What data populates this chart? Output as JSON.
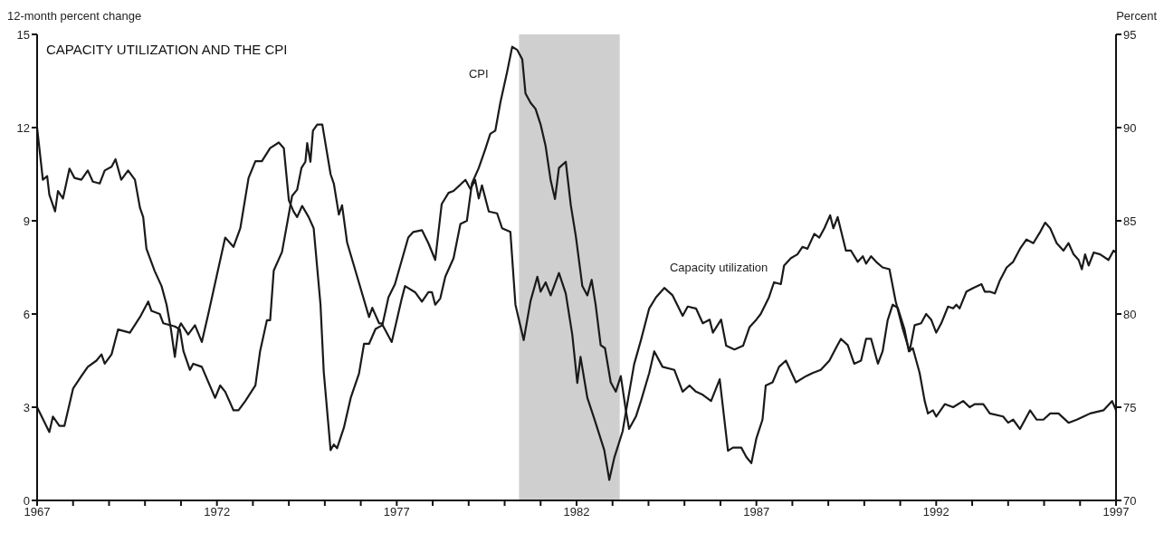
{
  "chart_data": {
    "type": "line",
    "title": "CAPACITY UTILIZATION AND THE CPI",
    "ylabel": "12-month percent change",
    "y2label": "Percent",
    "xlim": [
      1967,
      1997
    ],
    "xticks": [
      1967,
      {
        "value": 1968,
        "label": null
      },
      {
        "value": 1969,
        "label": null
      },
      {
        "value": 1970,
        "label": null
      },
      {
        "value": 1971,
        "label": null
      },
      1972,
      {
        "value": 1973,
        "label": null
      },
      {
        "value": 1974,
        "label": null
      },
      {
        "value": 1975,
        "label": null
      },
      {
        "value": 1976,
        "label": null
      },
      1977,
      {
        "value": 1978,
        "label": null
      },
      {
        "value": 1979,
        "label": null
      },
      {
        "value": 1980,
        "label": null
      },
      {
        "value": 1981,
        "label": null
      },
      1982,
      {
        "value": 1983,
        "label": null
      },
      {
        "value": 1984,
        "label": null
      },
      {
        "value": 1985,
        "label": null
      },
      {
        "value": 1986,
        "label": null
      },
      1987,
      {
        "value": 1988,
        "label": null
      },
      {
        "value": 1989,
        "label": null
      },
      {
        "value": 1990,
        "label": null
      },
      {
        "value": 1991,
        "label": null
      },
      1992,
      {
        "value": 1993,
        "label": null
      },
      {
        "value": 1994,
        "label": null
      },
      {
        "value": 1995,
        "label": null
      },
      {
        "value": 1996,
        "label": null
      },
      1997
    ],
    "ylim": [
      0,
      15
    ],
    "yticks": [
      0,
      3,
      6,
      9,
      12,
      15
    ],
    "y2lim": [
      70,
      95
    ],
    "y2ticks": [
      70,
      75,
      80,
      85,
      90,
      95
    ],
    "bands": [
      {
        "axis": "x",
        "from": 1980.4,
        "to": 1983.2,
        "color": "#cfcfcf"
      }
    ],
    "series": [
      {
        "name": "CPI",
        "color": "#1a1a1a",
        "x": [
          1967.0,
          1967.34,
          1967.44,
          1967.62,
          1967.76,
          1968.0,
          1968.23,
          1968.41,
          1968.65,
          1968.79,
          1968.88,
          1969.07,
          1969.25,
          1969.58,
          1969.86,
          1970.09,
          1970.18,
          1970.41,
          1970.51,
          1970.83,
          1970.97,
          1971.07,
          1971.25,
          1971.34,
          1971.58,
          1971.95,
          1972.09,
          1972.23,
          1972.46,
          1972.6,
          1972.79,
          1973.07,
          1973.2,
          1973.39,
          1973.48,
          1973.58,
          1973.81,
          1973.95,
          1974.09,
          1974.23,
          1974.35,
          1974.46,
          1974.51,
          1974.6,
          1974.67,
          1974.79,
          1974.93,
          1975.16,
          1975.25,
          1975.39,
          1975.48,
          1975.62,
          1975.9,
          1976.23,
          1976.32,
          1976.51,
          1976.58,
          1976.86,
          1977.14,
          1977.23,
          1977.51,
          1977.7,
          1977.88,
          1977.98,
          1978.07,
          1978.21,
          1978.35,
          1978.58,
          1978.77,
          1978.95,
          1979.09,
          1979.28,
          1979.46,
          1979.6,
          1979.74,
          1979.88,
          1980.07,
          1980.21,
          1980.35,
          1980.49,
          1980.58,
          1980.72,
          1980.86,
          1981.0,
          1981.14,
          1981.28,
          1981.4,
          1981.51,
          1981.7,
          1981.84,
          1981.98,
          1982.16,
          1982.3,
          1982.42,
          1982.53,
          1982.67,
          1982.79,
          1982.95,
          1983.09,
          1983.23,
          1983.37,
          1983.46,
          1983.65,
          1983.79,
          1984.02,
          1984.16,
          1984.39,
          1984.72,
          1984.95,
          1985.14,
          1985.32,
          1985.51,
          1985.74,
          1985.98,
          1986.21,
          1986.35,
          1986.58,
          1986.72,
          1986.86,
          1987.0,
          1987.17,
          1987.26,
          1987.45,
          1987.63,
          1987.82,
          1988.1,
          1988.38,
          1988.56,
          1988.79,
          1989.03,
          1989.21,
          1989.35,
          1989.54,
          1989.72,
          1989.91,
          1990.05,
          1990.19,
          1990.38,
          1990.51,
          1990.65,
          1990.79,
          1990.93,
          1991.12,
          1991.24,
          1991.35,
          1991.54,
          1991.68,
          1991.77,
          1991.91,
          1992.0,
          1992.24,
          1992.47,
          1992.75,
          1992.93,
          1993.07,
          1993.31,
          1993.49,
          1993.86,
          1994.0,
          1994.14,
          1994.33,
          1994.61,
          1994.79,
          1994.98,
          1995.17,
          1995.4,
          1995.68,
          1995.91,
          1996.1,
          1996.28,
          1996.65,
          1996.89,
          1997.0
        ],
        "values": [
          3.0,
          2.2,
          2.7,
          2.4,
          2.4,
          3.6,
          4.0,
          4.3,
          4.5,
          4.7,
          4.4,
          4.7,
          5.5,
          5.4,
          5.9,
          6.4,
          6.1,
          6.0,
          5.7,
          5.6,
          5.5,
          4.8,
          4.2,
          4.4,
          4.3,
          3.3,
          3.7,
          3.5,
          2.9,
          2.9,
          3.2,
          3.7,
          4.8,
          5.8,
          5.8,
          7.4,
          8.0,
          8.9,
          9.8,
          10.0,
          10.7,
          10.9,
          11.5,
          10.9,
          11.9,
          12.1,
          12.1,
          10.5,
          10.2,
          9.2,
          9.5,
          8.3,
          7.2,
          5.9,
          6.2,
          5.7,
          5.7,
          5.1,
          6.5,
          6.9,
          6.7,
          6.4,
          6.7,
          6.7,
          6.3,
          6.5,
          7.2,
          7.8,
          8.9,
          9.0,
          10.2,
          10.7,
          11.3,
          11.8,
          11.9,
          12.8,
          13.8,
          14.6,
          14.5,
          14.2,
          13.1,
          12.8,
          12.6,
          12.1,
          11.4,
          10.3,
          9.7,
          10.7,
          10.9,
          9.5,
          8.5,
          6.9,
          6.6,
          7.1,
          6.3,
          5.0,
          4.9,
          3.8,
          3.5,
          4.0,
          2.9,
          2.3,
          2.7,
          3.2,
          4.1,
          4.8,
          4.3,
          4.2,
          3.5,
          3.7,
          3.5,
          3.4,
          3.2,
          3.9,
          1.6,
          1.7,
          1.7,
          1.4,
          1.2,
          2.0,
          2.6,
          3.7,
          3.8,
          4.3,
          4.5,
          3.8,
          4.0,
          4.1,
          4.2,
          4.5,
          4.9,
          5.2,
          5.0,
          4.4,
          4.5,
          5.2,
          5.2,
          4.4,
          4.8,
          5.8,
          6.3,
          6.2,
          5.5,
          4.8,
          4.9,
          4.1,
          3.2,
          2.8,
          2.9,
          2.7,
          3.1,
          3.0,
          3.2,
          3.0,
          3.1,
          3.1,
          2.8,
          2.7,
          2.5,
          2.6,
          2.3,
          2.9,
          2.6,
          2.6,
          2.8,
          2.8,
          2.5,
          2.6,
          2.7,
          2.8,
          2.9,
          3.2,
          2.9
        ]
      },
      {
        "name": "Capacity utilization",
        "color": "#1a1a1a",
        "axis": "y2",
        "x": [
          1967.0,
          1967.16,
          1967.28,
          1967.34,
          1967.5,
          1967.58,
          1967.72,
          1967.9,
          1968.04,
          1968.23,
          1968.41,
          1968.55,
          1968.74,
          1968.88,
          1969.07,
          1969.18,
          1969.34,
          1969.53,
          1969.72,
          1969.86,
          1969.95,
          1970.04,
          1970.27,
          1970.46,
          1970.6,
          1970.72,
          1970.83,
          1970.93,
          1971.0,
          1971.2,
          1971.39,
          1971.58,
          1971.76,
          1972.0,
          1972.23,
          1972.46,
          1972.65,
          1972.88,
          1973.07,
          1973.25,
          1973.48,
          1973.72,
          1973.86,
          1974.0,
          1974.13,
          1974.23,
          1974.37,
          1974.55,
          1974.69,
          1974.88,
          1974.97,
          1975.16,
          1975.25,
          1975.34,
          1975.53,
          1975.72,
          1975.95,
          1976.09,
          1976.23,
          1976.41,
          1976.6,
          1976.77,
          1976.95,
          1977.32,
          1977.46,
          1977.7,
          1977.88,
          1978.07,
          1978.25,
          1978.44,
          1978.58,
          1978.91,
          1979.05,
          1979.18,
          1979.28,
          1979.37,
          1979.56,
          1979.79,
          1979.93,
          1980.16,
          1980.3,
          1980.53,
          1980.72,
          1980.91,
          1981.0,
          1981.14,
          1981.28,
          1981.51,
          1981.7,
          1981.88,
          1982.02,
          1982.11,
          1982.3,
          1982.49,
          1982.77,
          1982.91,
          1983.05,
          1983.28,
          1983.42,
          1983.6,
          1983.79,
          1984.02,
          1984.21,
          1984.44,
          1984.67,
          1984.95,
          1985.09,
          1985.32,
          1985.51,
          1985.7,
          1985.79,
          1986.02,
          1986.16,
          1986.39,
          1986.63,
          1986.81,
          1987.0,
          1987.12,
          1987.35,
          1987.49,
          1987.68,
          1987.77,
          1987.96,
          1988.14,
          1988.28,
          1988.42,
          1988.61,
          1988.75,
          1988.89,
          1989.05,
          1989.14,
          1989.26,
          1989.49,
          1989.63,
          1989.82,
          1989.96,
          1990.05,
          1990.19,
          1990.33,
          1990.51,
          1990.7,
          1990.87,
          1991.07,
          1991.26,
          1991.4,
          1991.58,
          1991.72,
          1991.86,
          1992.0,
          1992.14,
          1992.33,
          1992.47,
          1992.56,
          1992.65,
          1992.84,
          1993.03,
          1993.26,
          1993.35,
          1993.49,
          1993.63,
          1993.77,
          1993.96,
          1994.14,
          1994.33,
          1994.51,
          1994.7,
          1994.89,
          1995.03,
          1995.17,
          1995.35,
          1995.54,
          1995.68,
          1995.82,
          1995.96,
          1996.05,
          1996.14,
          1996.24,
          1996.38,
          1996.56,
          1996.79,
          1996.93,
          1997.0
        ],
        "values": [
          90.0,
          87.2,
          87.4,
          86.4,
          85.5,
          86.6,
          86.2,
          87.8,
          87.3,
          87.2,
          87.7,
          87.1,
          87.0,
          87.7,
          87.9,
          88.3,
          87.2,
          87.7,
          87.2,
          85.7,
          85.2,
          83.5,
          82.3,
          81.5,
          80.5,
          79.2,
          77.7,
          79.2,
          79.5,
          78.9,
          79.4,
          78.5,
          80.0,
          82.1,
          84.1,
          83.6,
          84.6,
          87.3,
          88.2,
          88.2,
          88.9,
          89.2,
          88.9,
          86.1,
          85.5,
          85.2,
          85.8,
          85.2,
          84.6,
          80.5,
          76.9,
          72.7,
          73.0,
          72.8,
          73.9,
          75.5,
          76.8,
          78.4,
          78.4,
          79.2,
          79.4,
          80.9,
          81.6,
          84.1,
          84.4,
          84.5,
          83.8,
          82.9,
          85.9,
          86.5,
          86.6,
          87.2,
          86.7,
          87.2,
          86.2,
          86.9,
          85.5,
          85.4,
          84.6,
          84.4,
          80.5,
          78.6,
          80.7,
          82.0,
          81.2,
          81.7,
          81.0,
          82.2,
          81.1,
          78.9,
          76.3,
          77.7,
          75.5,
          74.4,
          72.7,
          71.1,
          72.3,
          73.7,
          75.3,
          77.3,
          78.6,
          80.3,
          80.9,
          81.4,
          81.0,
          79.9,
          80.4,
          80.3,
          79.5,
          79.7,
          79.0,
          79.7,
          78.3,
          78.1,
          78.3,
          79.3,
          79.7,
          80.0,
          80.9,
          81.7,
          81.6,
          82.6,
          83.0,
          83.2,
          83.6,
          83.5,
          84.3,
          84.1,
          84.6,
          85.3,
          84.6,
          85.2,
          83.4,
          83.4,
          82.8,
          83.1,
          82.7,
          83.1,
          82.8,
          82.5,
          82.4,
          80.7,
          79.2,
          78.0,
          79.4,
          79.5,
          80.0,
          79.7,
          79.0,
          79.5,
          80.4,
          80.3,
          80.5,
          80.3,
          81.2,
          81.4,
          81.6,
          81.2,
          81.2,
          81.1,
          81.8,
          82.5,
          82.8,
          83.5,
          84.0,
          83.8,
          84.4,
          84.9,
          84.6,
          83.8,
          83.4,
          83.8,
          83.2,
          82.9,
          82.4,
          83.2,
          82.6,
          83.3,
          83.2,
          82.9,
          83.4,
          83.3
        ]
      }
    ]
  }
}
